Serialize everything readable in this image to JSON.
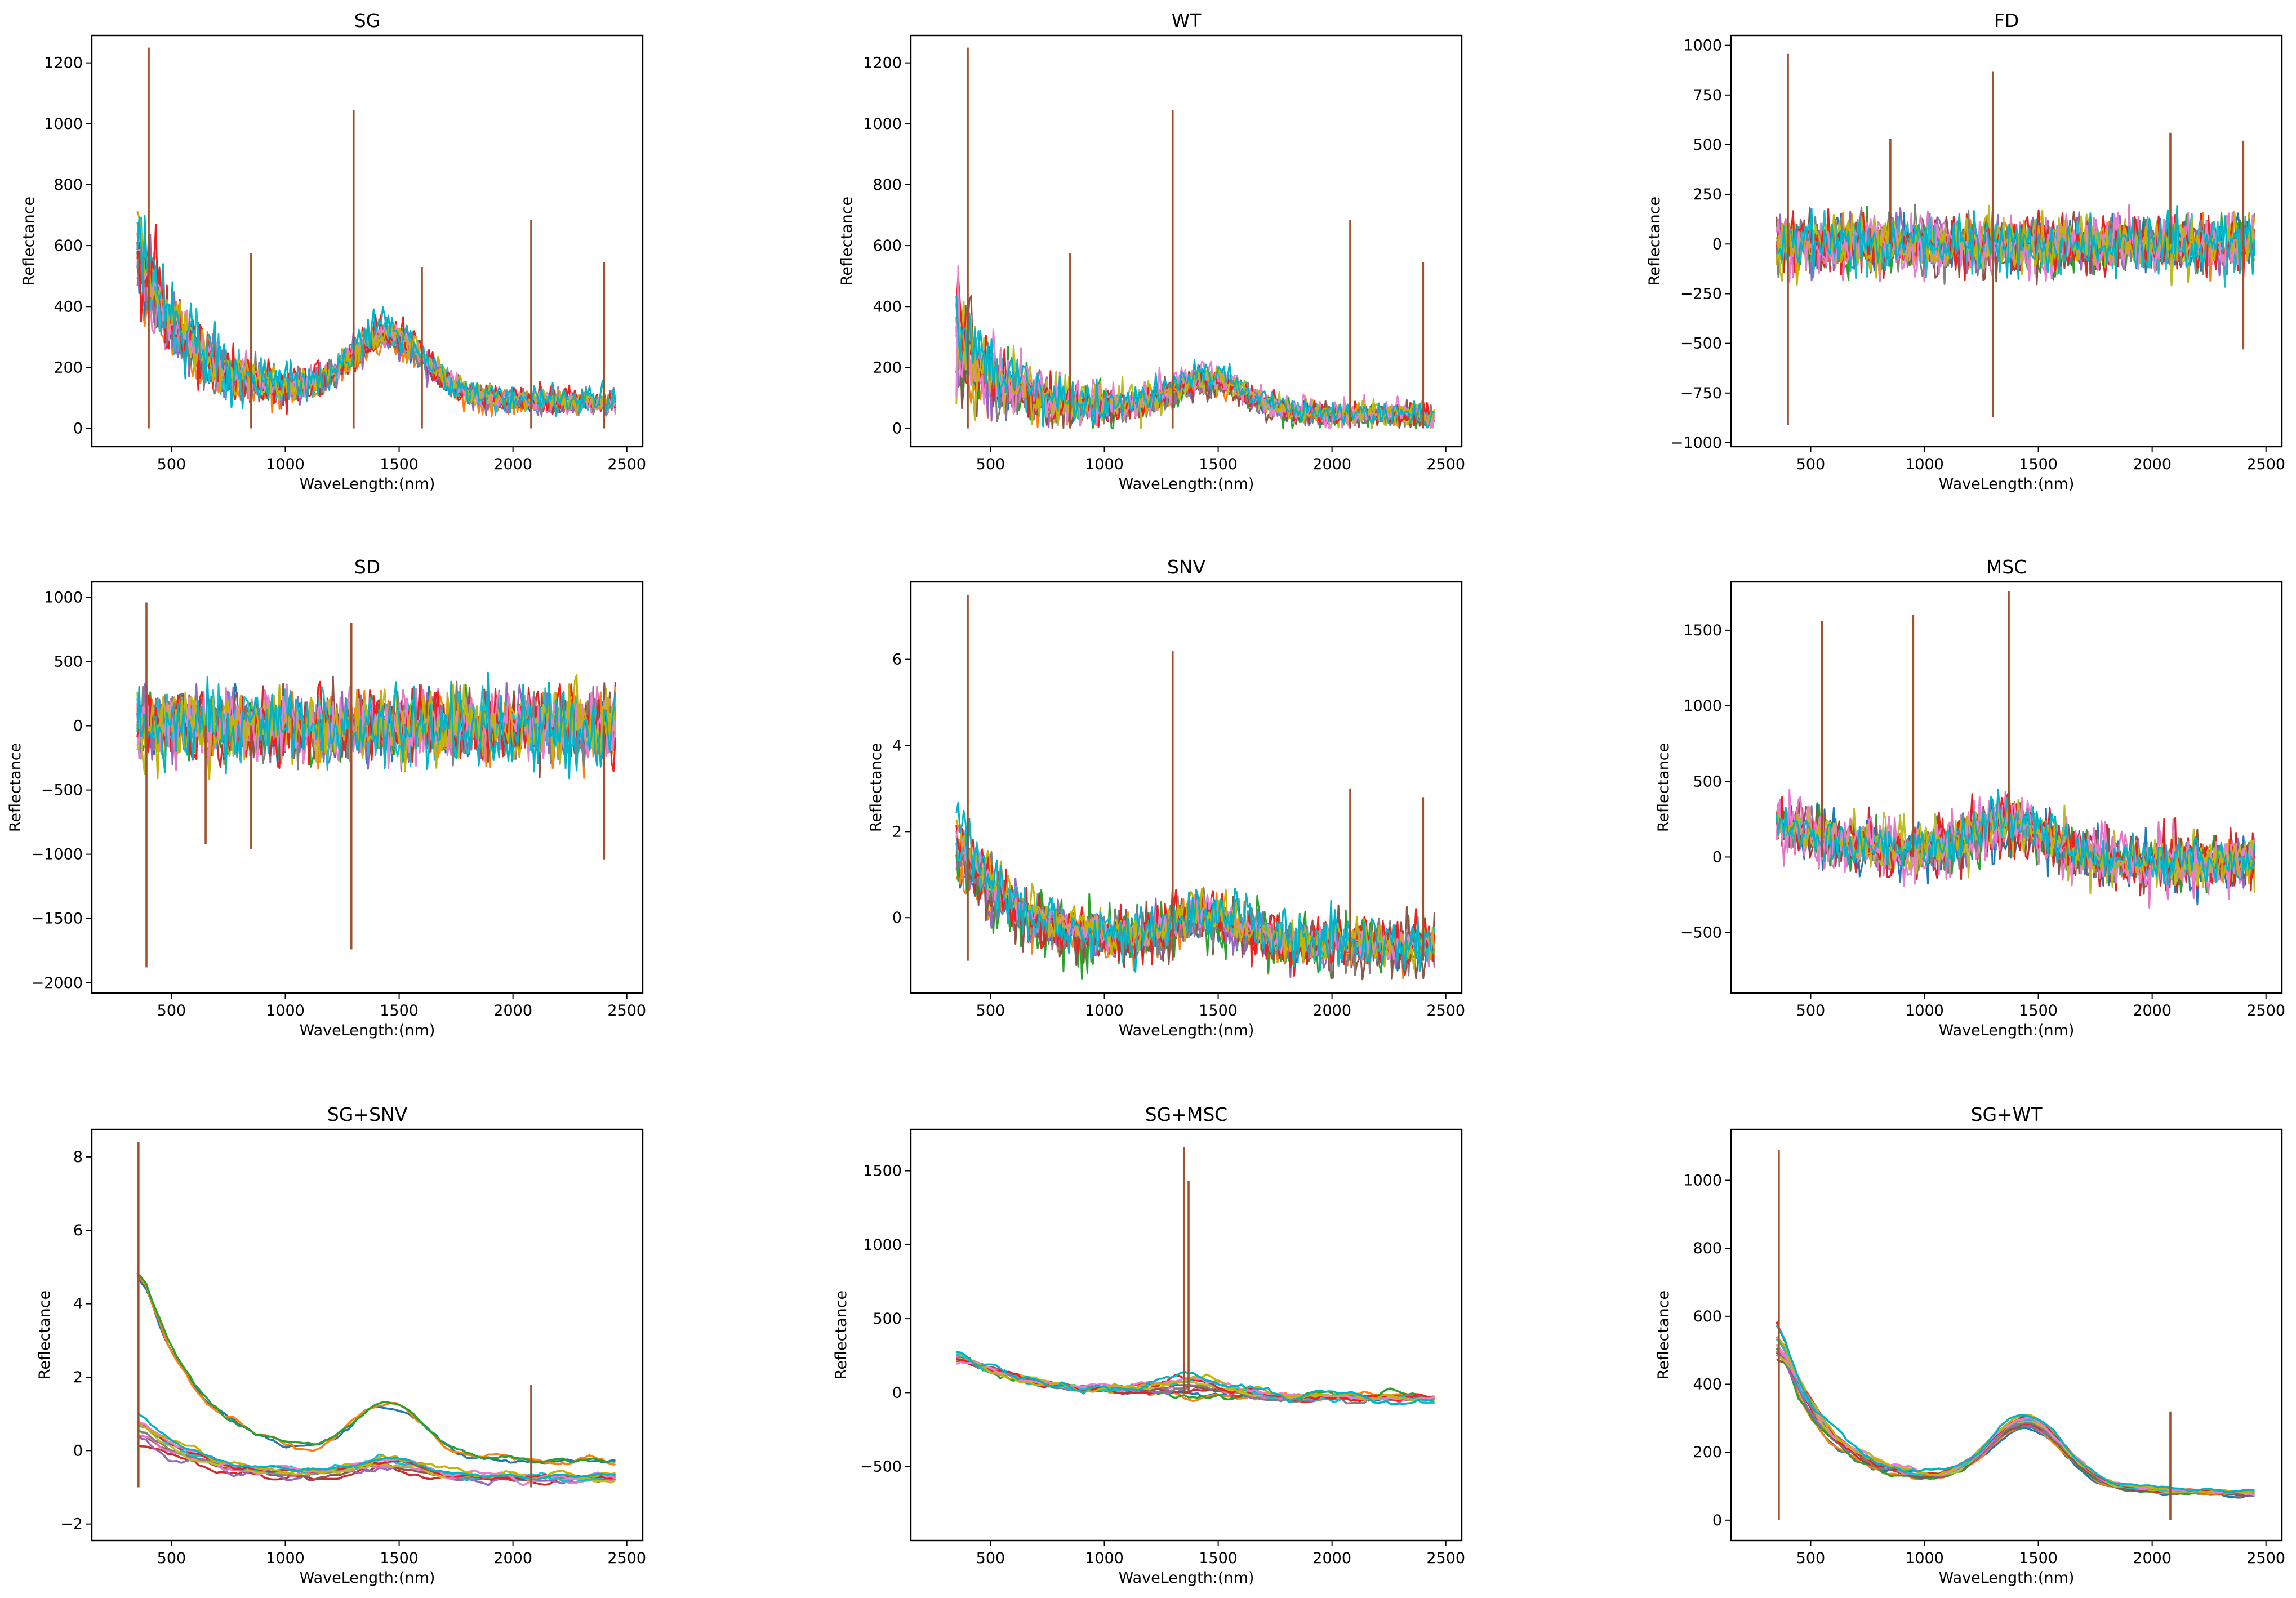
{
  "figure": {
    "palette": [
      "#1f77b4",
      "#ff7f0e",
      "#2ca02c",
      "#d62728",
      "#9467bd",
      "#8c564b",
      "#e377c2",
      "#7f7f7f",
      "#bcbd22",
      "#17becf",
      "#f01f1f",
      "#e87fd0",
      "#c4b100",
      "#00b4c8"
    ],
    "spike_color": "#a0522d"
  },
  "chart_data": [
    {
      "id": "sg",
      "type": "line",
      "title": "SG",
      "xlabel": "WaveLength:(nm)",
      "ylabel": "Reflectance",
      "xlim": [
        150,
        2570
      ],
      "ylim": [
        -60,
        1290
      ],
      "xticks": [
        500,
        1000,
        1500,
        2000,
        2500
      ],
      "yticks": [
        0,
        200,
        400,
        600,
        800,
        1000,
        1200
      ],
      "x_range": [
        350,
        2450
      ],
      "profile": "decay",
      "noise": "high",
      "series_count": 14,
      "series_description": "many overlapping noisy reflectance spectra, strongest near 350-500 nm",
      "spikes": [
        {
          "x": 400,
          "y": 1250
        },
        {
          "x": 1300,
          "y": 1045
        },
        {
          "x": 2080,
          "y": 685
        },
        {
          "x": 2400,
          "y": 545
        },
        {
          "x": 850,
          "y": 575
        },
        {
          "x": 1600,
          "y": 530
        }
      ]
    },
    {
      "id": "wt",
      "type": "line",
      "title": "WT",
      "xlabel": "WaveLength:(nm)",
      "ylabel": "Reflectance",
      "xlim": [
        150,
        2570
      ],
      "ylim": [
        -60,
        1290
      ],
      "xticks": [
        500,
        1000,
        1500,
        2000,
        2500
      ],
      "yticks": [
        0,
        200,
        400,
        600,
        800,
        1000,
        1200
      ],
      "x_range": [
        350,
        2450
      ],
      "profile": "decay",
      "noise": "high",
      "series_count": 14,
      "series_description": "wavelet-denoised spectra, visually similar to SG",
      "spikes": [
        {
          "x": 400,
          "y": 1250
        },
        {
          "x": 1300,
          "y": 1045
        },
        {
          "x": 2080,
          "y": 685
        },
        {
          "x": 2400,
          "y": 545
        },
        {
          "x": 850,
          "y": 575
        }
      ]
    },
    {
      "id": "fd",
      "type": "line",
      "title": "FD",
      "xlabel": "WaveLength:(nm)",
      "ylabel": "Reflectance",
      "xlim": [
        150,
        2570
      ],
      "ylim": [
        -1020,
        1050
      ],
      "xticks": [
        500,
        1000,
        1500,
        2000,
        2500
      ],
      "yticks": [
        -1000,
        -750,
        -500,
        -250,
        0,
        250,
        500,
        750,
        1000
      ],
      "x_range": [
        350,
        2450
      ],
      "profile": "centered",
      "noise": "high",
      "series_count": 14,
      "series_description": "first derivative spectra centered on zero",
      "spikes": [
        {
          "x": 400,
          "y": 960
        },
        {
          "x": 400,
          "y": -910
        },
        {
          "x": 1300,
          "y": 870
        },
        {
          "x": 1300,
          "y": -870
        },
        {
          "x": 2080,
          "y": 560
        },
        {
          "x": 2400,
          "y": 520
        },
        {
          "x": 2400,
          "y": -530
        },
        {
          "x": 850,
          "y": 530
        }
      ]
    },
    {
      "id": "sd",
      "type": "line",
      "title": "SD",
      "xlabel": "WaveLength:(nm)",
      "ylabel": "Reflectance",
      "xlim": [
        150,
        2570
      ],
      "ylim": [
        -2080,
        1120
      ],
      "xticks": [
        500,
        1000,
        1500,
        2000,
        2500
      ],
      "yticks": [
        -2000,
        -1500,
        -1000,
        -500,
        0,
        500,
        1000
      ],
      "x_range": [
        350,
        2450
      ],
      "profile": "centered",
      "noise": "high",
      "series_count": 14,
      "series_description": "second derivative spectra centered on zero",
      "spikes": [
        {
          "x": 390,
          "y": -1880
        },
        {
          "x": 390,
          "y": 960
        },
        {
          "x": 1290,
          "y": -1740
        },
        {
          "x": 1290,
          "y": 800
        },
        {
          "x": 2400,
          "y": -1040
        },
        {
          "x": 850,
          "y": -960
        },
        {
          "x": 650,
          "y": -920
        }
      ]
    },
    {
      "id": "snv",
      "type": "line",
      "title": "SNV",
      "xlabel": "WaveLength:(nm)",
      "ylabel": "Reflectance",
      "xlim": [
        150,
        2570
      ],
      "ylim": [
        -1.75,
        7.8
      ],
      "xticks": [
        500,
        1000,
        1500,
        2000,
        2500
      ],
      "yticks": [
        0,
        2,
        4,
        6
      ],
      "x_range": [
        350,
        2450
      ],
      "profile": "snv",
      "noise": "high",
      "series_count": 14,
      "series_description": "standard normal variate spectra with baseline near -1.2",
      "spikes": [
        {
          "x": 400,
          "y": 7.5
        },
        {
          "x": 1300,
          "y": 6.2
        },
        {
          "x": 2080,
          "y": 3.0
        },
        {
          "x": 2400,
          "y": 2.8
        }
      ]
    },
    {
      "id": "msc",
      "type": "line",
      "title": "MSC",
      "xlabel": "WaveLength:(nm)",
      "ylabel": "Reflectance",
      "xlim": [
        150,
        2570
      ],
      "ylim": [
        -900,
        1820
      ],
      "xticks": [
        500,
        1000,
        1500,
        2000,
        2500
      ],
      "yticks": [
        -500,
        0,
        500,
        1000,
        1500
      ],
      "x_range": [
        350,
        2450
      ],
      "profile": "msc",
      "noise": "high",
      "series_count": 14,
      "series_description": "multiplicative scatter corrected spectra with large excursions between 900 and 1700 nm",
      "spikes": [
        {
          "x": 1370,
          "y": 1760
        },
        {
          "x": 950,
          "y": 1600
        },
        {
          "x": 550,
          "y": 1560
        }
      ]
    },
    {
      "id": "sg_snv",
      "type": "line",
      "title": "SG+SNV",
      "xlabel": "WaveLength:(nm)",
      "ylabel": "Reflectance",
      "xlim": [
        150,
        2570
      ],
      "ylim": [
        -2.45,
        8.75
      ],
      "xticks": [
        500,
        1000,
        1500,
        2000,
        2500
      ],
      "yticks": [
        -2,
        0,
        2,
        4,
        6,
        8
      ],
      "x_range": [
        350,
        2450
      ],
      "profile": "snv",
      "noise": "low",
      "series_count": 14,
      "series_description": "smoothed SNV spectra",
      "spikes": [
        {
          "x": 355,
          "y": 8.4
        },
        {
          "x": 2080,
          "y": 1.8
        }
      ]
    },
    {
      "id": "sg_msc",
      "type": "line",
      "title": "SG+MSC",
      "xlabel": "WaveLength:(nm)",
      "ylabel": "Reflectance",
      "xlim": [
        150,
        2570
      ],
      "ylim": [
        -1000,
        1780
      ],
      "xticks": [
        500,
        1000,
        1500,
        2000,
        2500
      ],
      "yticks": [
        -500,
        0,
        500,
        1000,
        1500
      ],
      "x_range": [
        350,
        2450
      ],
      "profile": "msc",
      "noise": "low",
      "series_count": 14,
      "series_description": "smoothed MSC spectra with broad peaks near 1350 nm",
      "spikes": [
        {
          "x": 1350,
          "y": 1660
        },
        {
          "x": 1370,
          "y": 1430
        }
      ]
    },
    {
      "id": "sg_wt",
      "type": "line",
      "title": "SG+WT",
      "xlabel": "WaveLength:(nm)",
      "ylabel": "Reflectance",
      "xlim": [
        150,
        2570
      ],
      "ylim": [
        -60,
        1150
      ],
      "xticks": [
        500,
        1000,
        1500,
        2000,
        2500
      ],
      "yticks": [
        0,
        200,
        400,
        600,
        800,
        1000
      ],
      "x_range": [
        350,
        2450
      ],
      "profile": "decay",
      "noise": "low",
      "series_count": 14,
      "series_description": "smoothed wavelet spectra peaking near 1090 at 350 nm",
      "spikes": [
        {
          "x": 360,
          "y": 1090
        },
        {
          "x": 2080,
          "y": 320
        }
      ]
    }
  ]
}
